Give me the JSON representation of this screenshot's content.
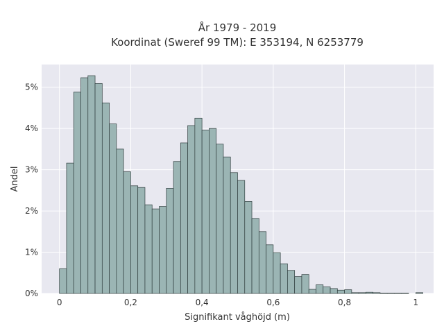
{
  "chart_data": {
    "type": "bar",
    "title_lines": [
      "År 1979 - 2019",
      "Koordinat (Sweref 99 TM): E 353194, N 6253779"
    ],
    "xlabel": "Signifikant våghöjd (m)",
    "ylabel": "Andel",
    "xlim": [
      -0.05,
      1.05
    ],
    "ylim": [
      0,
      0.0555
    ],
    "bin_width": 0.02,
    "bin_starts": [
      0.0,
      0.02,
      0.04,
      0.06,
      0.08,
      0.1,
      0.12,
      0.14,
      0.16,
      0.18,
      0.2,
      0.22,
      0.24,
      0.26,
      0.28,
      0.3,
      0.32,
      0.34,
      0.36,
      0.38,
      0.4,
      0.42,
      0.44,
      0.46,
      0.48,
      0.5,
      0.52,
      0.54,
      0.56,
      0.58,
      0.6,
      0.62,
      0.64,
      0.66,
      0.68,
      0.7,
      0.72,
      0.74,
      0.76,
      0.78,
      0.8,
      0.82,
      0.84,
      0.86,
      0.88,
      0.9,
      0.92,
      0.94,
      0.96,
      0.98,
      1.0
    ],
    "values": [
      0.006,
      0.0316,
      0.0488,
      0.0523,
      0.0528,
      0.0509,
      0.0462,
      0.0411,
      0.035,
      0.0295,
      0.0261,
      0.0257,
      0.0215,
      0.0205,
      0.0211,
      0.0255,
      0.032,
      0.0365,
      0.0407,
      0.0425,
      0.0396,
      0.04,
      0.0362,
      0.0331,
      0.0293,
      0.0274,
      0.0223,
      0.0182,
      0.015,
      0.0118,
      0.0099,
      0.0072,
      0.0056,
      0.0041,
      0.0046,
      0.001,
      0.0021,
      0.0016,
      0.0012,
      0.0008,
      0.0009,
      0.0002,
      0.0002,
      0.0003,
      0.0002,
      0.0001,
      0.0001,
      0.0001,
      0.0001,
      0.0,
      0.0002
    ],
    "x_ticks": [
      0,
      0.2,
      0.4,
      0.6,
      0.8,
      1
    ],
    "x_tick_labels": [
      "0",
      "0,2",
      "0,4",
      "0,6",
      "0,8",
      "1"
    ],
    "y_ticks": [
      0,
      0.01,
      0.02,
      0.03,
      0.04,
      0.05
    ],
    "y_tick_labels": [
      "0%",
      "1%",
      "2%",
      "3%",
      "4%",
      "5%"
    ],
    "grid": true,
    "legend": "none",
    "colors": {
      "bar_fill": "#9bb5b4",
      "bar_stroke": "#2f3d3d",
      "plot_bg": "#e8e8f0",
      "grid": "#ffffff"
    }
  }
}
